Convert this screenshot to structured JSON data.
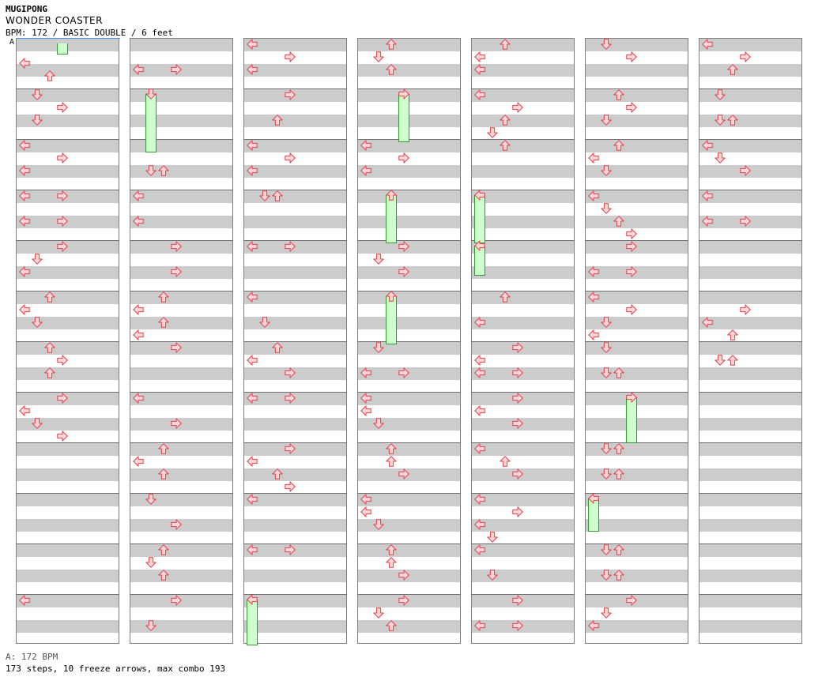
{
  "header": {
    "artist": "MUGIPONG",
    "title": "WONDER COASTER",
    "info": "BPM: 172 / BASIC DOUBLE / 6 feet"
  },
  "bpm_marker": "A",
  "footer": {
    "bpm": "A: 172 BPM",
    "stats": "173 steps, 10 freeze arrows, max combo 193"
  },
  "colors": {
    "row_gray": "#cccccc",
    "arrow_fill": "#ffd6d6",
    "arrow_stroke": "#e0404a",
    "freeze_fill": "#ccffcc",
    "freeze_stroke": "#339933",
    "bpm_line": "#4a90d9"
  },
  "chart": {
    "measures_per_column": 12,
    "columns": 7,
    "lane_order": [
      "left-1",
      "down-1",
      "up-1",
      "right-1",
      "left-2",
      "down-2",
      "up-2",
      "right-2"
    ],
    "steps": [
      [
        0,
        0.375,
        "L"
      ],
      [
        0,
        0.625,
        "U"
      ],
      [
        0,
        1.0,
        "D"
      ],
      [
        0,
        1.25,
        "R"
      ],
      [
        0,
        1.5,
        "D"
      ],
      [
        0,
        2.0,
        "L"
      ],
      [
        0,
        2.25,
        "R"
      ],
      [
        0,
        2.5,
        "L"
      ],
      [
        0,
        3.0,
        "R"
      ],
      [
        0,
        3.0,
        "L"
      ],
      [
        0,
        3.5,
        "R"
      ],
      [
        0,
        3.5,
        "L"
      ],
      [
        0,
        4.0,
        "R"
      ],
      [
        0,
        4.25,
        "D"
      ],
      [
        0,
        4.5,
        "L"
      ],
      [
        0,
        5.0,
        "U"
      ],
      [
        0,
        5.25,
        "L"
      ],
      [
        0,
        5.5,
        "D"
      ],
      [
        0,
        6.0,
        "U"
      ],
      [
        0,
        6.25,
        "R"
      ],
      [
        0,
        6.5,
        "U"
      ],
      [
        0,
        7.0,
        "R"
      ],
      [
        0,
        7.25,
        "L"
      ],
      [
        0,
        7.5,
        "D"
      ],
      [
        0,
        7.75,
        "R"
      ],
      [
        0,
        11.0,
        "L"
      ],
      [
        1,
        0.5,
        "R"
      ],
      [
        1,
        0.5,
        "L"
      ],
      [
        1,
        2.5,
        "D"
      ],
      [
        1,
        2.5,
        "U"
      ],
      [
        1,
        3.0,
        "L"
      ],
      [
        1,
        3.5,
        "L"
      ],
      [
        1,
        4.0,
        "R"
      ],
      [
        1,
        4.5,
        "R"
      ],
      [
        1,
        5.0,
        "U"
      ],
      [
        1,
        5.25,
        "L"
      ],
      [
        1,
        5.5,
        "U"
      ],
      [
        1,
        5.75,
        "L"
      ],
      [
        1,
        6.0,
        "R"
      ],
      [
        1,
        7.0,
        "L"
      ],
      [
        1,
        7.5,
        "R"
      ],
      [
        1,
        8.0,
        "U"
      ],
      [
        1,
        8.25,
        "L"
      ],
      [
        1,
        8.5,
        "U"
      ],
      [
        1,
        9.0,
        "D"
      ],
      [
        1,
        9.5,
        "R"
      ],
      [
        1,
        10.0,
        "U"
      ],
      [
        1,
        10.25,
        "D"
      ],
      [
        1,
        10.5,
        "U"
      ],
      [
        1,
        11.0,
        "R"
      ],
      [
        1,
        11.5,
        "D"
      ],
      [
        2,
        0.0,
        "L"
      ],
      [
        2,
        0.25,
        "R"
      ],
      [
        2,
        0.5,
        "L"
      ],
      [
        2,
        1.0,
        "R"
      ],
      [
        2,
        1.5,
        "U"
      ],
      [
        2,
        2.0,
        "L"
      ],
      [
        2,
        2.25,
        "R"
      ],
      [
        2,
        2.5,
        "L"
      ],
      [
        2,
        3.0,
        "D"
      ],
      [
        2,
        3.0,
        "U"
      ],
      [
        2,
        4.0,
        "L"
      ],
      [
        2,
        4.0,
        "R"
      ],
      [
        2,
        5.0,
        "L"
      ],
      [
        2,
        5.5,
        "D"
      ],
      [
        2,
        6.0,
        "U"
      ],
      [
        2,
        6.25,
        "L"
      ],
      [
        2,
        6.5,
        "R"
      ],
      [
        2,
        7.0,
        "R"
      ],
      [
        2,
        7.0,
        "L"
      ],
      [
        2,
        8.0,
        "R"
      ],
      [
        2,
        8.25,
        "L"
      ],
      [
        2,
        8.5,
        "U"
      ],
      [
        2,
        8.75,
        "R"
      ],
      [
        2,
        9.0,
        "L"
      ],
      [
        2,
        10.0,
        "L"
      ],
      [
        2,
        10.0,
        "R"
      ],
      [
        3,
        0.0,
        "U"
      ],
      [
        3,
        0.25,
        "D"
      ],
      [
        3,
        0.5,
        "U"
      ],
      [
        3,
        2.0,
        "L"
      ],
      [
        3,
        2.25,
        "R"
      ],
      [
        3,
        2.5,
        "L"
      ],
      [
        3,
        4.0,
        "R"
      ],
      [
        3,
        4.25,
        "D"
      ],
      [
        3,
        4.5,
        "R"
      ],
      [
        3,
        6.0,
        "D"
      ],
      [
        3,
        6.5,
        "L"
      ],
      [
        3,
        6.5,
        "R"
      ],
      [
        3,
        7.0,
        "L"
      ],
      [
        3,
        7.25,
        "L"
      ],
      [
        3,
        7.5,
        "D"
      ],
      [
        3,
        8.0,
        "U"
      ],
      [
        3,
        8.25,
        "U"
      ],
      [
        3,
        8.5,
        "R"
      ],
      [
        3,
        9.0,
        "L"
      ],
      [
        3,
        9.25,
        "L"
      ],
      [
        3,
        9.5,
        "D"
      ],
      [
        3,
        10.0,
        "U"
      ],
      [
        3,
        10.25,
        "U"
      ],
      [
        3,
        10.5,
        "R"
      ],
      [
        3,
        11.0,
        "R"
      ],
      [
        3,
        11.25,
        "D"
      ],
      [
        3,
        11.5,
        "U"
      ],
      [
        4,
        0.0,
        "U"
      ],
      [
        4,
        0.25,
        "L"
      ],
      [
        4,
        0.5,
        "L"
      ],
      [
        4,
        1.0,
        "L"
      ],
      [
        4,
        1.25,
        "R"
      ],
      [
        4,
        1.5,
        "U"
      ],
      [
        4,
        1.75,
        "D"
      ],
      [
        4,
        2.0,
        "U"
      ],
      [
        4,
        5.0,
        "U"
      ],
      [
        4,
        5.5,
        "L"
      ],
      [
        4,
        6.0,
        "R"
      ],
      [
        4,
        6.25,
        "L"
      ],
      [
        4,
        6.5,
        "R"
      ],
      [
        4,
        6.5,
        "L"
      ],
      [
        4,
        7.0,
        "R"
      ],
      [
        4,
        7.25,
        "L"
      ],
      [
        4,
        7.5,
        "R"
      ],
      [
        4,
        8.0,
        "L"
      ],
      [
        4,
        8.25,
        "U"
      ],
      [
        4,
        8.5,
        "R"
      ],
      [
        4,
        9.0,
        "L"
      ],
      [
        4,
        9.25,
        "R"
      ],
      [
        4,
        9.5,
        "L"
      ],
      [
        4,
        9.75,
        "D"
      ],
      [
        4,
        10.0,
        "L"
      ],
      [
        4,
        10.5,
        "D"
      ],
      [
        4,
        11.0,
        "R"
      ],
      [
        4,
        11.5,
        "R"
      ],
      [
        4,
        11.5,
        "L"
      ],
      [
        5,
        0.0,
        "D"
      ],
      [
        5,
        0.25,
        "R"
      ],
      [
        5,
        1.0,
        "U"
      ],
      [
        5,
        1.25,
        "R"
      ],
      [
        5,
        1.5,
        "D"
      ],
      [
        5,
        2.0,
        "U"
      ],
      [
        5,
        2.25,
        "L"
      ],
      [
        5,
        2.5,
        "D"
      ],
      [
        5,
        3.0,
        "L"
      ],
      [
        5,
        3.25,
        "D"
      ],
      [
        5,
        3.5,
        "U"
      ],
      [
        5,
        3.75,
        "R"
      ],
      [
        5,
        4.0,
        "R"
      ],
      [
        5,
        4.5,
        "R"
      ],
      [
        5,
        4.5,
        "L"
      ],
      [
        5,
        5.0,
        "L"
      ],
      [
        5,
        5.25,
        "R"
      ],
      [
        5,
        5.5,
        "D"
      ],
      [
        5,
        5.75,
        "L"
      ],
      [
        5,
        6.0,
        "D"
      ],
      [
        5,
        6.5,
        "D"
      ],
      [
        5,
        6.5,
        "U"
      ],
      [
        5,
        8.0,
        "D"
      ],
      [
        5,
        8.0,
        "U"
      ],
      [
        5,
        8.5,
        "D"
      ],
      [
        5,
        8.5,
        "U"
      ],
      [
        5,
        10.0,
        "D"
      ],
      [
        5,
        10.0,
        "U"
      ],
      [
        5,
        10.5,
        "D"
      ],
      [
        5,
        10.5,
        "U"
      ],
      [
        5,
        11.0,
        "R"
      ],
      [
        5,
        11.25,
        "D"
      ],
      [
        5,
        11.5,
        "L"
      ],
      [
        6,
        0.0,
        "L"
      ],
      [
        6,
        0.25,
        "R"
      ],
      [
        6,
        0.5,
        "U"
      ],
      [
        6,
        1.0,
        "D"
      ],
      [
        6,
        1.5,
        "D"
      ],
      [
        6,
        1.5,
        "U"
      ],
      [
        6,
        2.0,
        "L"
      ],
      [
        6,
        2.25,
        "D"
      ],
      [
        6,
        2.5,
        "R"
      ],
      [
        6,
        3.0,
        "L"
      ],
      [
        6,
        3.5,
        "R"
      ],
      [
        6,
        3.5,
        "L"
      ],
      [
        6,
        5.25,
        "R"
      ],
      [
        6,
        5.5,
        "L"
      ],
      [
        6,
        5.75,
        "U"
      ],
      [
        6,
        6.25,
        "D"
      ],
      [
        6,
        6.25,
        "U"
      ]
    ],
    "freezes": [
      [
        0,
        0.0,
        "R"
      ],
      [
        1,
        1.0,
        "D"
      ],
      [
        2,
        11.0,
        "L"
      ],
      [
        3,
        1.0,
        "R"
      ],
      [
        3,
        3.0,
        "U"
      ],
      [
        3,
        5.0,
        "U"
      ],
      [
        4,
        3.0,
        "L"
      ],
      [
        4,
        4.0,
        "L"
      ],
      [
        5,
        7.0,
        "R"
      ],
      [
        5,
        9.0,
        "L"
      ]
    ]
  }
}
